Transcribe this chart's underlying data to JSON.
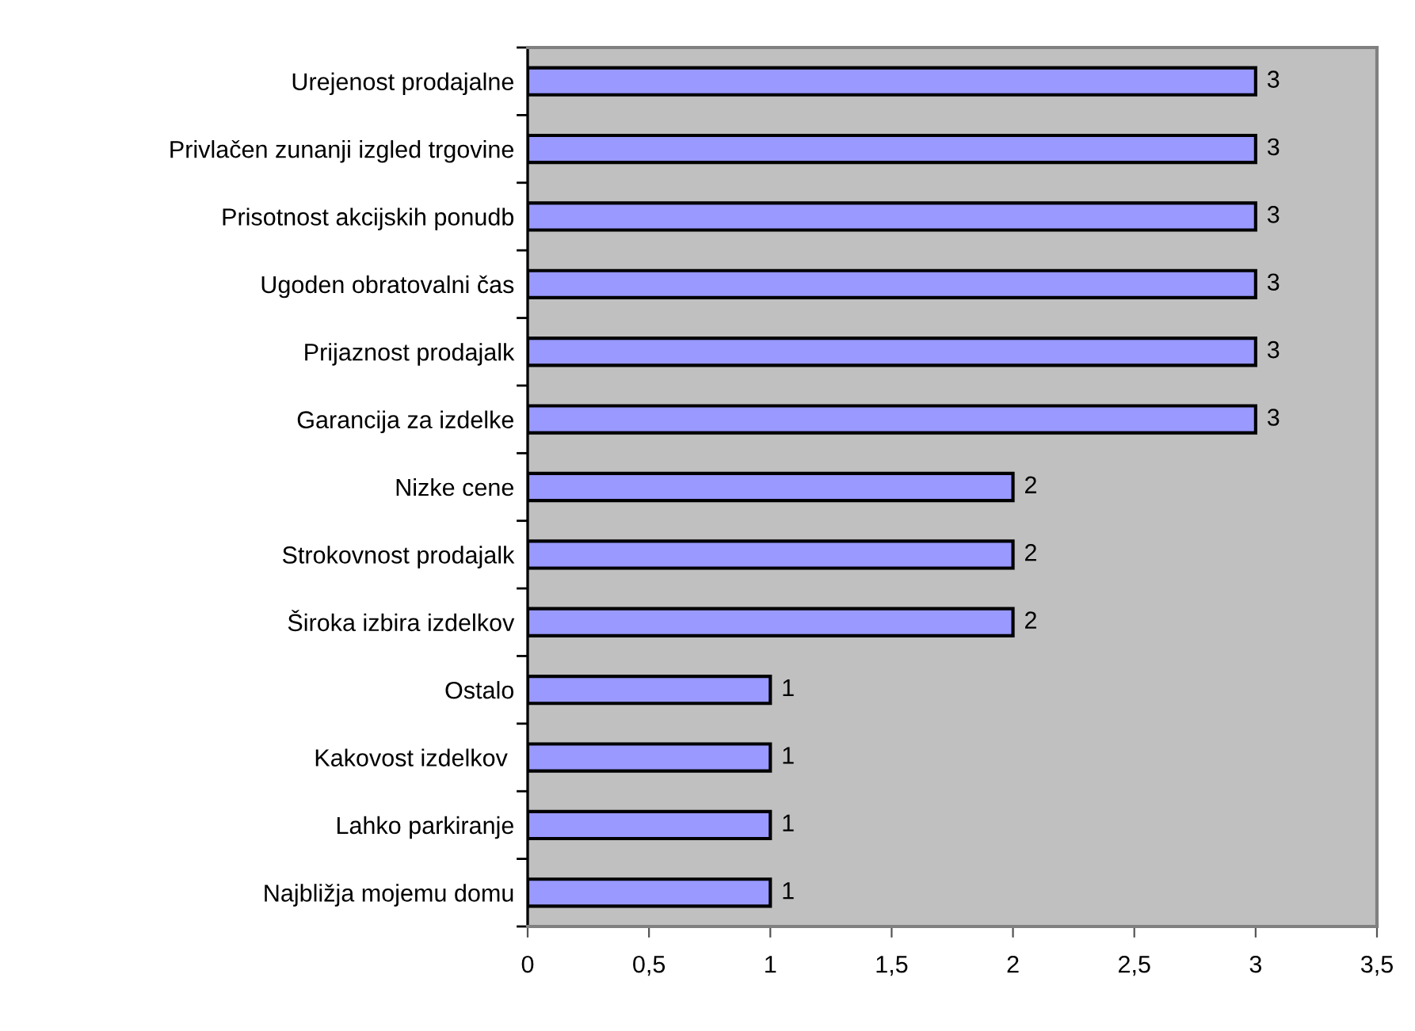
{
  "chart_data": {
    "type": "bar",
    "orientation": "horizontal",
    "categories": [
      "Urejenost prodajalne",
      "Privlačen zunanji izgled trgovine",
      "Prisotnost akcijskih ponudb",
      "Ugoden obratovalni čas",
      "Prijaznost prodajalk",
      "Garancija za izdelke",
      "Nizke cene",
      "Strokovnost prodajalk",
      "Široka izbira izdelkov",
      "Ostalo",
      "Kakovost izdelkov ",
      "Lahko parkiranje",
      "Najbližja mojemu domu"
    ],
    "values": [
      3,
      3,
      3,
      3,
      3,
      3,
      2,
      2,
      2,
      1,
      1,
      1,
      1
    ],
    "color": "#9999ff",
    "xlim": [
      0,
      3.5
    ],
    "xticks": [
      0,
      {
        "value": 0.5,
        "label": "0,5"
      },
      1,
      {
        "value": 1.5,
        "label": "1,5"
      },
      2,
      {
        "value": 2.5,
        "label": "2,5"
      },
      3,
      {
        "value": 3.5,
        "label": "3,5"
      }
    ],
    "data_labels": true,
    "grid": false,
    "legend": false
  }
}
